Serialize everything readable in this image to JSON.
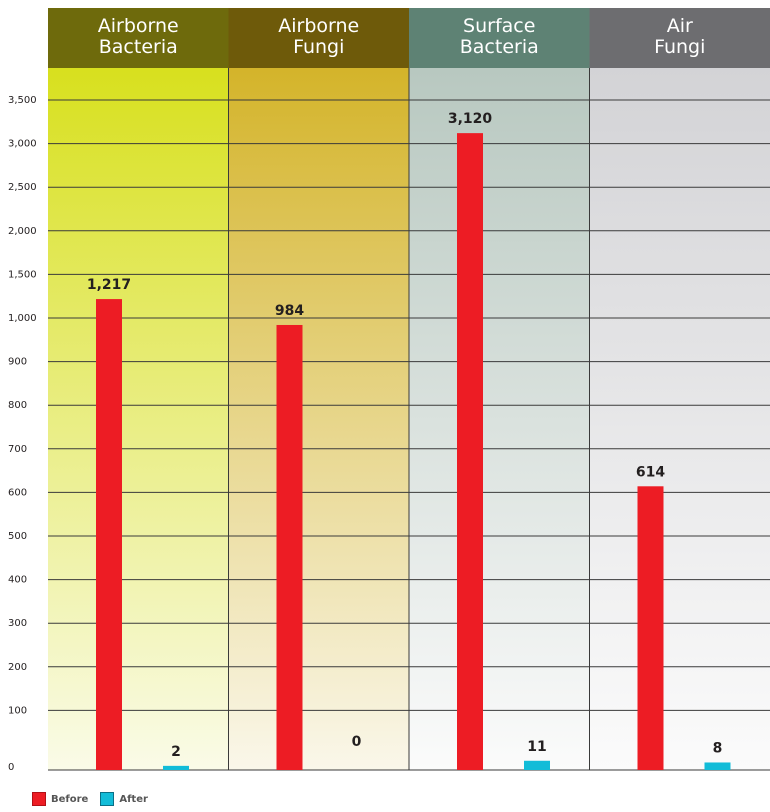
{
  "chart_data": {
    "type": "bar",
    "categories": [
      "Airborne\nBacteria",
      "Airborne\nFungi",
      "Surface\nBacteria",
      "Air\nFungi"
    ],
    "series": [
      {
        "name": "Before",
        "values": [
          1217,
          984,
          3120,
          614
        ],
        "labels": [
          "1,217",
          "984",
          "3,120",
          "614"
        ]
      },
      {
        "name": "After",
        "values": [
          2,
          0,
          11,
          8
        ],
        "labels": [
          "2",
          "0",
          "11",
          "8"
        ]
      }
    ],
    "y_ticks": [
      "0",
      "100",
      "200",
      "300",
      "400",
      "500",
      "600",
      "700",
      "800",
      "900",
      "1,000",
      "1,500",
      "2,000",
      "2,500",
      "3,000",
      "3,500"
    ],
    "y_tick_values": [
      0,
      100,
      200,
      300,
      400,
      500,
      600,
      700,
      800,
      900,
      1000,
      1500,
      2000,
      2500,
      3000,
      3500
    ],
    "y_scale": "piecewise: linear 0–1,000 in steps of 100, then 1,000–3,500 in steps of 500 at the same spacing",
    "grid": true,
    "legend_position": "bottom-left",
    "colors": {
      "before": "#ed1c24",
      "after": "#12bcd8",
      "header_panels": [
        "#6e6a0c",
        "#6e5a0a",
        "#5e8274",
        "#6d6d70"
      ],
      "panel_tops": [
        "#d8e01e",
        "#d4b42a",
        "#b8c8c0",
        "#d3d3d6"
      ],
      "panel_bottoms": [
        "#fafbe8",
        "#faf7ea",
        "#fbfbfb",
        "#fbfbfb"
      ]
    }
  }
}
